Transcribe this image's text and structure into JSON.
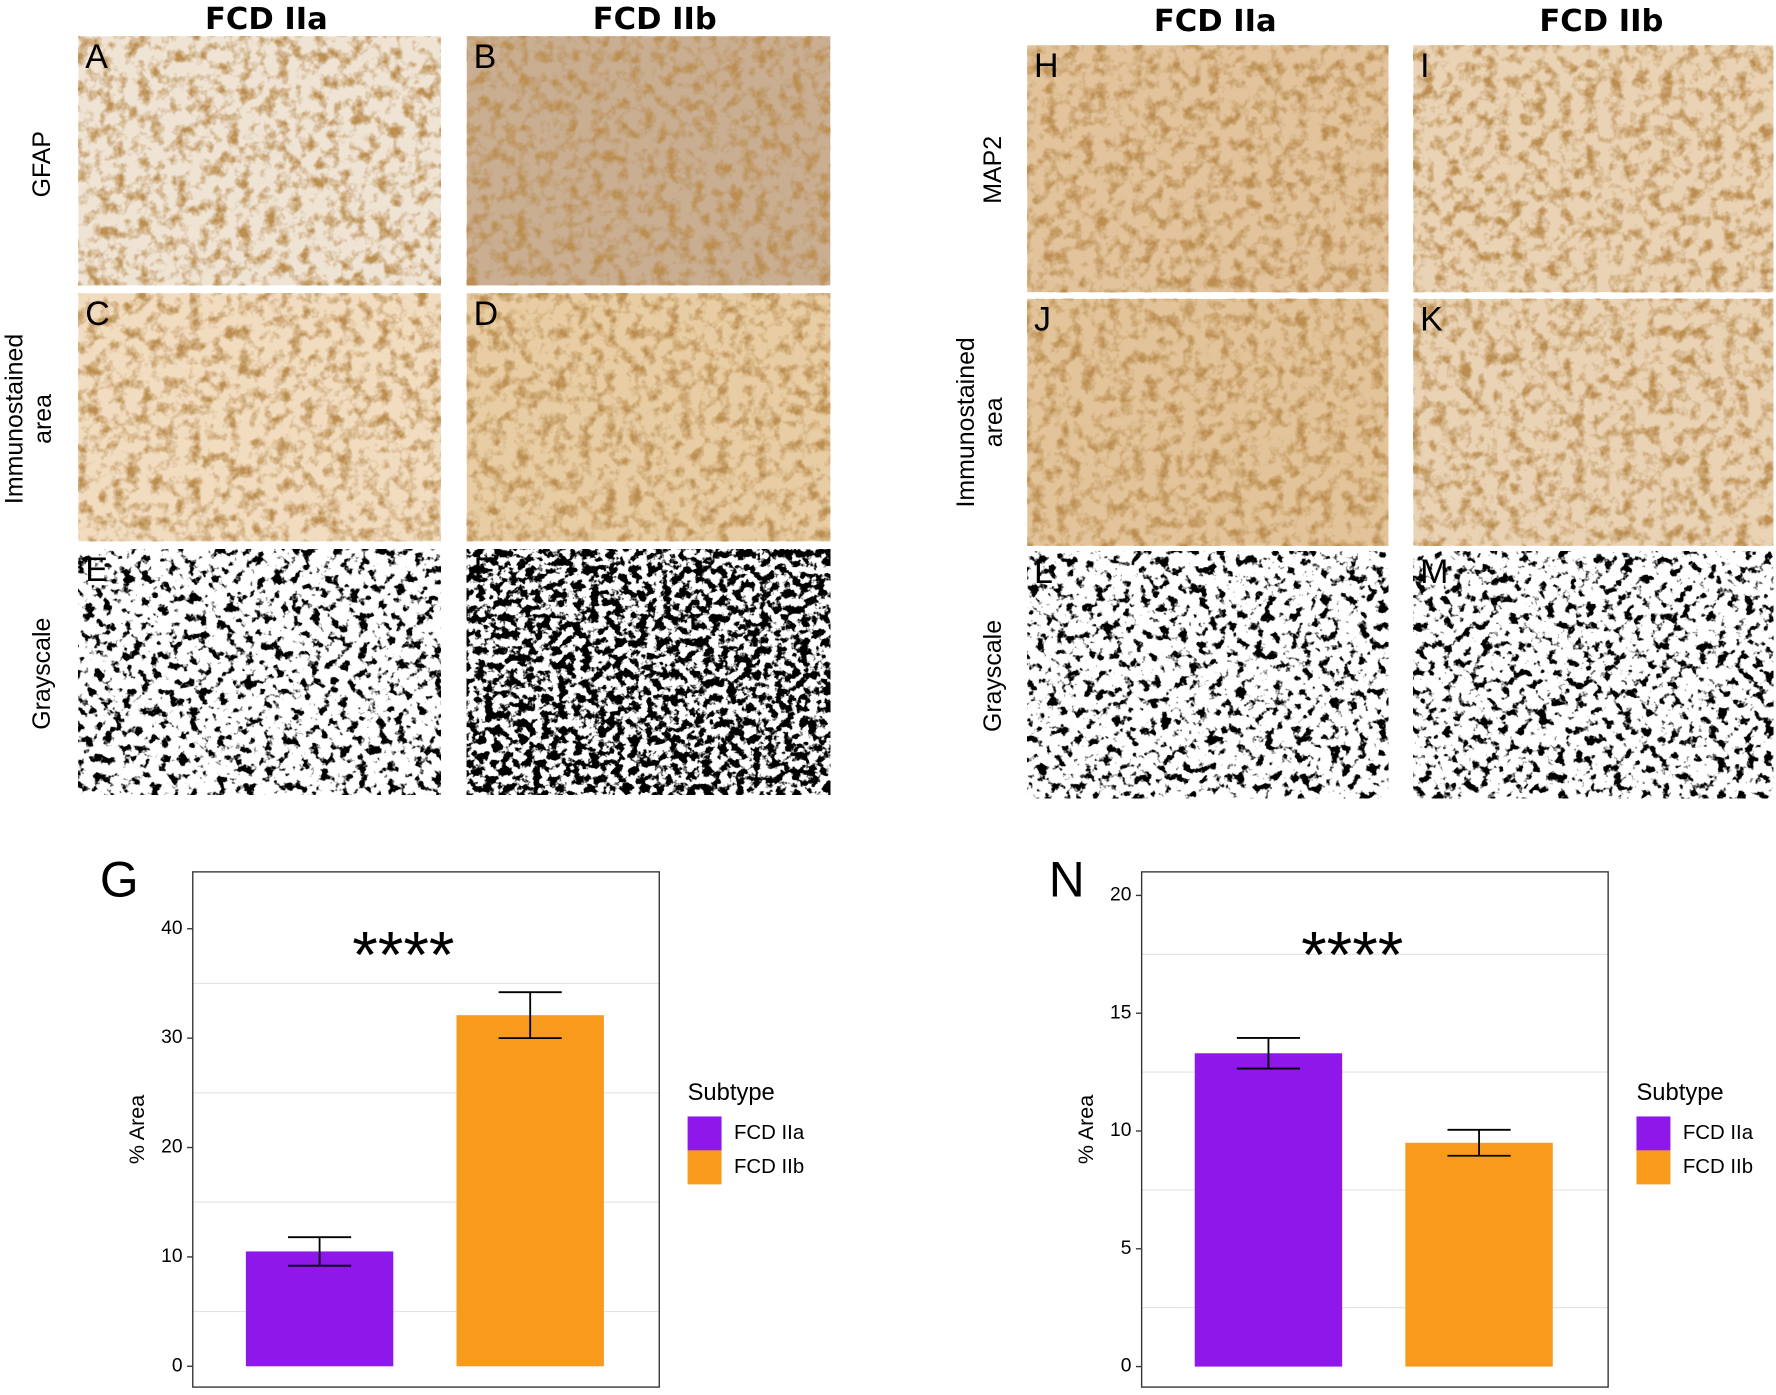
{
  "figure": {
    "left": {
      "columns": [
        "FCD IIa",
        "FCD IIb"
      ],
      "rows": [
        [
          "GFAP"
        ],
        [
          "Immunostained",
          "area"
        ],
        [
          "Grayscale"
        ]
      ],
      "panels": [
        "A",
        "B",
        "C",
        "D",
        "E",
        "F"
      ]
    },
    "right": {
      "columns": [
        "FCD IIa",
        "FCD IIb"
      ],
      "rows": [
        [
          "MAP2"
        ],
        [
          "Immunostained",
          "area"
        ],
        [
          "Grayscale"
        ]
      ],
      "panels": [
        "H",
        "I",
        "J",
        "K",
        "L",
        "M"
      ]
    }
  },
  "chart_data": [
    {
      "type": "bar",
      "panel": "G",
      "ylabel": "% Area",
      "annotation": "****",
      "legend_title": "Subtype",
      "legend_position": "right",
      "ylim": [
        -1.9,
        45.2
      ],
      "yticks": [
        0,
        10,
        20,
        30,
        40
      ],
      "minor_grid": [
        5,
        15,
        25,
        35
      ],
      "series": [
        {
          "name": "FCD IIa",
          "color": "#8e17e9",
          "values": [
            10.5
          ],
          "errors": [
            1.3
          ]
        },
        {
          "name": "FCD IIb",
          "color": "#f89b1d",
          "values": [
            32.1
          ],
          "errors": [
            2.1
          ]
        }
      ]
    },
    {
      "type": "bar",
      "panel": "N",
      "ylabel": "% Area",
      "annotation": "****",
      "legend_title": "Subtype",
      "legend_position": "right",
      "ylim": [
        -0.87,
        21.0
      ],
      "yticks": [
        0,
        5,
        10,
        15,
        20
      ],
      "minor_grid": [
        2.5,
        7.5,
        12.5,
        17.5
      ],
      "series": [
        {
          "name": "FCD IIa",
          "color": "#8e17e9",
          "values": [
            13.3
          ],
          "errors": [
            0.65
          ]
        },
        {
          "name": "FCD IIb",
          "color": "#f89b1d",
          "values": [
            9.5
          ],
          "errors": [
            0.55
          ]
        }
      ]
    }
  ]
}
